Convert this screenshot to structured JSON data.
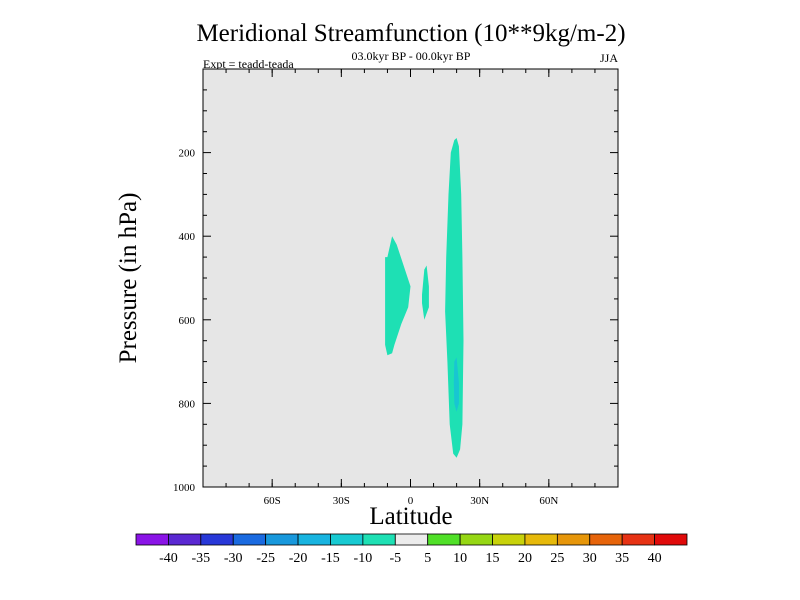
{
  "chart_data": {
    "type": "contour",
    "title": "Meridional Streamfunction (10**9kg/m-2)",
    "subtitle_center": "03.0kyr BP - 00.0kyr BP",
    "subtitle_left": "Expt = teadd-teada",
    "subtitle_right": "JJA",
    "xlabel": "Latitude",
    "ylabel": "Pressure (in hPa)",
    "xlim": [
      -90,
      90
    ],
    "ylim": [
      1000,
      0
    ],
    "x_ticks": [
      {
        "value": -60,
        "label": "60S"
      },
      {
        "value": -30,
        "label": "30S"
      },
      {
        "value": 0,
        "label": "0"
      },
      {
        "value": 30,
        "label": "30N"
      },
      {
        "value": 60,
        "label": "60N"
      }
    ],
    "y_ticks": [
      {
        "value": 200,
        "label": "200"
      },
      {
        "value": 400,
        "label": "400"
      },
      {
        "value": 600,
        "label": "600"
      },
      {
        "value": 800,
        "label": "800"
      },
      {
        "value": 1000,
        "label": "1000"
      }
    ],
    "background_color": "#e6e6e6",
    "regions": [
      {
        "name": "southern-lobe",
        "level": "-10 to -5",
        "color": "#1ee0b4",
        "outline": [
          [
            -10,
            450
          ],
          [
            -8,
            400
          ],
          [
            -6,
            420
          ],
          [
            -3,
            470
          ],
          [
            0,
            520
          ],
          [
            -1,
            570
          ],
          [
            -4,
            610
          ],
          [
            -7,
            660
          ],
          [
            -8,
            680
          ],
          [
            -10,
            685
          ],
          [
            -11,
            660
          ],
          [
            -11,
            450
          ]
        ]
      },
      {
        "name": "equatorial-sliver",
        "level": "-10 to -5",
        "color": "#1ee0b4",
        "outline": [
          [
            5,
            540
          ],
          [
            6,
            480
          ],
          [
            7,
            470
          ],
          [
            8,
            520
          ],
          [
            8,
            570
          ],
          [
            6,
            600
          ],
          [
            5,
            560
          ]
        ]
      },
      {
        "name": "northern-column",
        "level": "-10 to -5",
        "color": "#1ee0b4",
        "outline": [
          [
            19,
            170
          ],
          [
            20,
            165
          ],
          [
            21,
            185
          ],
          [
            22,
            300
          ],
          [
            22.5,
            450
          ],
          [
            23,
            650
          ],
          [
            22.5,
            850
          ],
          [
            21.5,
            910
          ],
          [
            20,
            930
          ],
          [
            18.5,
            920
          ],
          [
            17,
            850
          ],
          [
            16,
            700
          ],
          [
            15,
            580
          ],
          [
            15.5,
            450
          ],
          [
            16.5,
            300
          ],
          [
            17.5,
            200
          ]
        ]
      },
      {
        "name": "northern-column-core",
        "level": "-15 to -10",
        "color": "#18c6d2",
        "outline": [
          [
            19,
            700
          ],
          [
            20,
            690
          ],
          [
            21,
            750
          ],
          [
            21,
            800
          ],
          [
            20,
            820
          ],
          [
            19,
            800
          ],
          [
            18.8,
            750
          ]
        ]
      }
    ],
    "colorbar": {
      "labels": [
        "-40",
        "-35",
        "-30",
        "-25",
        "-20",
        "-15",
        "-10",
        "-5",
        "5",
        "10",
        "15",
        "20",
        "25",
        "30",
        "35",
        "40"
      ],
      "colors": [
        "#8a14e6",
        "#5a28d2",
        "#2838d8",
        "#1a6ae0",
        "#1898dc",
        "#18b4e0",
        "#18cad2",
        "#1ee0b4",
        "#ececec",
        "#50e028",
        "#96d714",
        "#c8d20a",
        "#e6b90a",
        "#e6960a",
        "#e6640a",
        "#e63214",
        "#e00a0a"
      ]
    }
  }
}
